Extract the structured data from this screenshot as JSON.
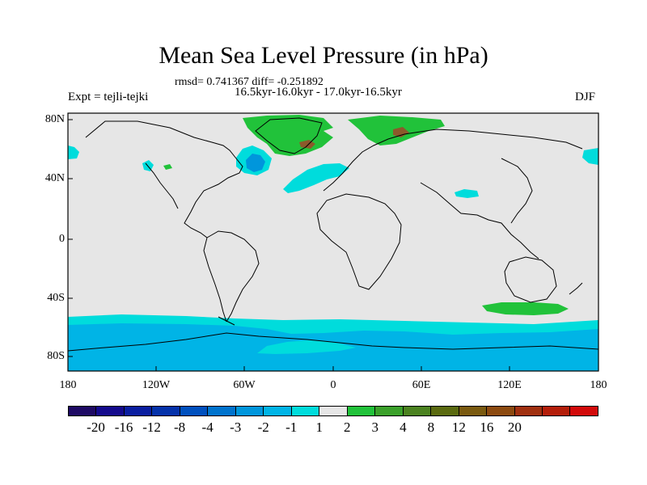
{
  "title": "Mean Sea Level Pressure (in hPa)",
  "subtitle_stats": "rmsd= 0.741367 diff= -0.251892",
  "subtitle_periods": "16.5kyr-16.0kyr - 17.0kyr-16.5kyr",
  "experiment_label": "Expt = tejli-tejki",
  "season_label": "DJF",
  "colors": {
    "land_ocean_background": "#e6e6e6",
    "coastline": "#000000",
    "neg_light": "#00dcdc",
    "neg_medium": "#00b4e6",
    "neg_dark": "#0096dc",
    "pos_light": "#21c23a",
    "pos_dark": "#8b5a2b"
  },
  "axes": {
    "y_ticks": [
      "80N",
      "40N",
      "0",
      "40S",
      "80S"
    ],
    "x_ticks": [
      "180",
      "120W",
      "60W",
      "0",
      "60E",
      "120E",
      "180"
    ]
  },
  "colorbar": {
    "colors": [
      "#1e0a64",
      "#140a8c",
      "#0a1ea0",
      "#0532aa",
      "#0050be",
      "#0073cd",
      "#0096dc",
      "#00b4e6",
      "#00dcdc",
      "#e6e6e6",
      "#21c23a",
      "#3aa02a",
      "#4b8220",
      "#5a6a10",
      "#7a5a10",
      "#8c4a10",
      "#a03010",
      "#b41e0a",
      "#d20a0a"
    ],
    "labels": [
      "-20",
      "-16",
      "-12",
      "-8",
      "-4",
      "-3",
      "-2",
      "-1",
      "1",
      "2",
      "3",
      "4",
      "8",
      "12",
      "16",
      "20"
    ]
  },
  "chart_data": {
    "type": "heatmap",
    "title": "Mean Sea Level Pressure (in hPa)",
    "variable": "Mean Sea Level Pressure difference",
    "units": "hPa",
    "x_range": [
      -180,
      180
    ],
    "y_range": [
      -90,
      90
    ],
    "levels": [
      -20,
      -16,
      -12,
      -8,
      -4,
      -3,
      -2,
      -1,
      1,
      2,
      3,
      4,
      8,
      12,
      16,
      20
    ],
    "notable_regions": [
      {
        "name": "Southern Ocean negative band",
        "range": "-2 to -3"
      },
      {
        "name": "Antarctica negative anomaly",
        "range": "-2 to -3"
      },
      {
        "name": "Greenland positive anomaly",
        "range": "1 to 2"
      },
      {
        "name": "Northern Eurasia positive anomaly",
        "range": "1 to 2"
      },
      {
        "name": "Southern Indian Ocean positive anomaly",
        "range": "1 to 2"
      },
      {
        "name": "Northwest Atlantic negative anomaly",
        "range": "-2 to -3"
      },
      {
        "name": "Eastern Atlantic negative anomaly",
        "range": "-1 to -2"
      }
    ]
  }
}
